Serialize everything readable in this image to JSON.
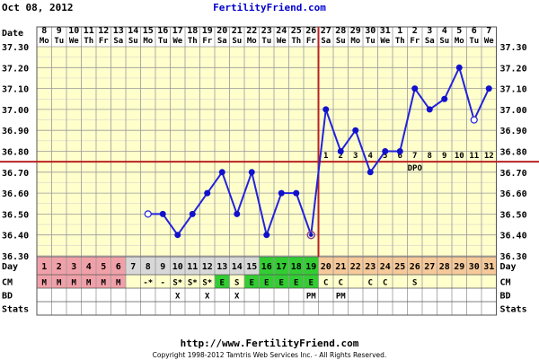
{
  "header": {
    "date": "Oct 08, 2012",
    "site": "FertilityFriend.com"
  },
  "footer": {
    "url": "http://www.FertilityFriend.com",
    "copyright": "Copyright 1998-2012 Tamtris Web Services Inc. - All Rights Reserved."
  },
  "row_labels": {
    "date": "Date",
    "day": "Day",
    "cm": "CM",
    "bd": "BD",
    "stats": "Stats"
  },
  "colors": {
    "grid_bg": "#ffffcc",
    "grid_line": "#999999",
    "line": "#2222dd",
    "marker_fill": "#1111cc",
    "coverline": "#bb2222",
    "menstrual": "#f0a0a8",
    "early_days": "#d8d8d8",
    "fertile": "#33cc33",
    "luteal": "#f5c99a",
    "cm_egg": "#33cc33",
    "cm_m": "#f0a0a8"
  },
  "chart_data": {
    "type": "line",
    "title": "",
    "ylabel": "",
    "xlabel": "",
    "ylim": [
      36.3,
      37.3
    ],
    "ytick_labels": [
      "36.30",
      "36.40",
      "36.50",
      "36.60",
      "36.70",
      "36.80",
      "36.90",
      "37.00",
      "37.10",
      "37.20",
      "37.30"
    ],
    "date_numbers": [
      "8",
      "9",
      "10",
      "11",
      "12",
      "13",
      "14",
      "15",
      "16",
      "17",
      "18",
      "19",
      "20",
      "21",
      "22",
      "23",
      "24",
      "25",
      "26",
      "27",
      "28",
      "29",
      "30",
      "31",
      "1",
      "2",
      "3",
      "4",
      "5",
      "6",
      "7"
    ],
    "weekdays": [
      "Mo",
      "Tu",
      "We",
      "Th",
      "Fr",
      "Sa",
      "Su",
      "Mo",
      "Tu",
      "We",
      "Th",
      "Fr",
      "Sa",
      "Su",
      "Mo",
      "Tu",
      "We",
      "Th",
      "Fr",
      "Sa",
      "Su",
      "Mo",
      "Tu",
      "We",
      "Th",
      "Fr",
      "Sa",
      "Su",
      "Mo",
      "Tu",
      "We"
    ],
    "cycle_days": [
      1,
      2,
      3,
      4,
      5,
      6,
      7,
      8,
      9,
      10,
      11,
      12,
      13,
      14,
      15,
      16,
      17,
      18,
      19,
      20,
      21,
      22,
      23,
      24,
      25,
      26,
      27,
      28,
      29,
      30,
      31
    ],
    "temperatures": [
      null,
      null,
      null,
      null,
      null,
      null,
      null,
      36.5,
      36.5,
      36.4,
      36.5,
      36.6,
      36.7,
      36.5,
      36.7,
      36.4,
      36.6,
      36.6,
      36.4,
      37.0,
      36.8,
      36.9,
      36.7,
      36.8,
      36.8,
      37.1,
      37.0,
      37.05,
      37.2,
      36.95,
      37.1
    ],
    "open_markers": [
      8,
      30
    ],
    "ring_markers": [
      19
    ],
    "coverline": 36.75,
    "ovulation_day": 19,
    "dpo_label": "DPO",
    "dpo_numbers": [
      "1",
      "2",
      "3",
      "4",
      "5",
      "6",
      "7",
      "8",
      "9",
      "10",
      "11",
      "12"
    ],
    "cervical_mucus": [
      "M",
      "M",
      "M",
      "M",
      "M",
      "M",
      "",
      "-*",
      "-",
      "S*",
      "S*",
      "S*",
      "E",
      "S",
      "E",
      "E",
      "E",
      "E",
      "E",
      "C",
      "C",
      "",
      "C",
      "C",
      "",
      "S",
      "",
      "",
      "",
      "",
      ""
    ],
    "intercourse": [
      "",
      "",
      "",
      "",
      "",
      "",
      "",
      "",
      "",
      "X",
      "",
      "X",
      "",
      "X",
      "",
      "",
      "",
      "",
      "PM",
      "",
      "PM",
      "",
      "",
      "",
      "",
      "",
      "",
      "",
      "",
      "",
      ""
    ],
    "stats": []
  }
}
